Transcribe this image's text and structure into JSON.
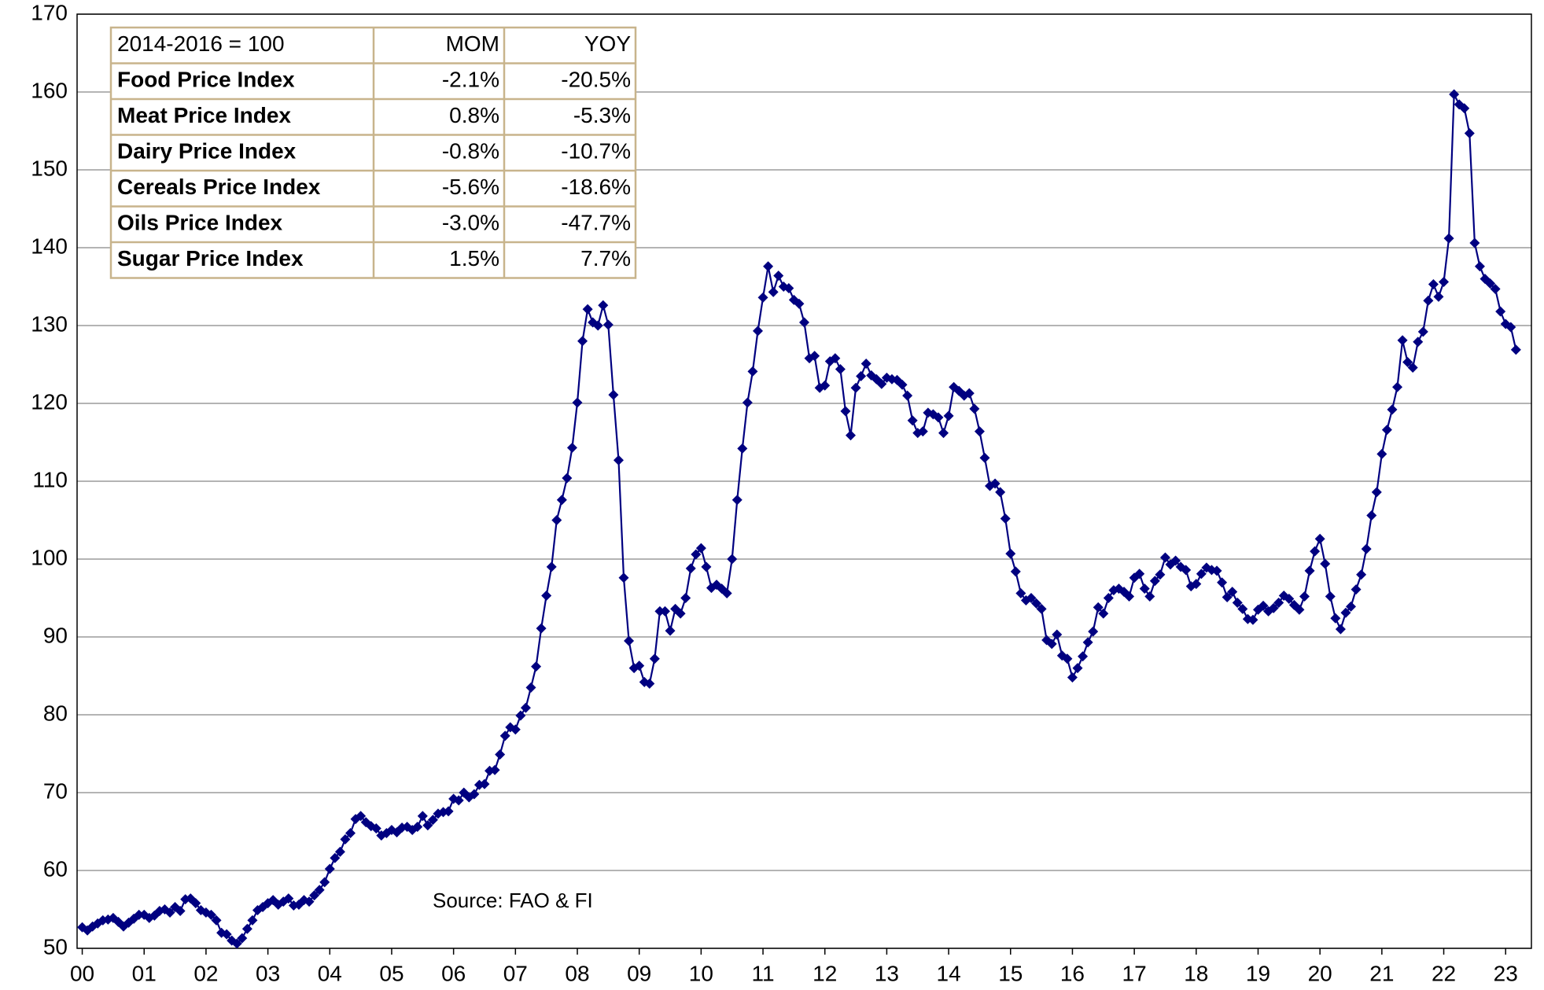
{
  "chart_data": {
    "type": "line",
    "annotation": "Source: FAO & FI",
    "categories": [
      "00",
      null,
      null,
      null,
      null,
      null,
      null,
      null,
      null,
      null,
      null,
      null,
      "01",
      null,
      null,
      null,
      null,
      null,
      null,
      null,
      null,
      null,
      null,
      null,
      "02",
      null,
      null,
      null,
      null,
      null,
      null,
      null,
      null,
      null,
      null,
      null,
      "03",
      null,
      null,
      null,
      null,
      null,
      null,
      null,
      null,
      null,
      null,
      null,
      "04",
      null,
      null,
      null,
      null,
      null,
      null,
      null,
      null,
      null,
      null,
      null,
      "05",
      null,
      null,
      null,
      null,
      null,
      null,
      null,
      null,
      null,
      null,
      null,
      "06",
      null,
      null,
      null,
      null,
      null,
      null,
      null,
      null,
      null,
      null,
      null,
      "07",
      null,
      null,
      null,
      null,
      null,
      null,
      null,
      null,
      null,
      null,
      null,
      "08",
      null,
      null,
      null,
      null,
      null,
      null,
      null,
      null,
      null,
      null,
      null,
      "09",
      null,
      null,
      null,
      null,
      null,
      null,
      null,
      null,
      null,
      null,
      null,
      "10",
      null,
      null,
      null,
      null,
      null,
      null,
      null,
      null,
      null,
      null,
      null,
      "11",
      null,
      null,
      null,
      null,
      null,
      null,
      null,
      null,
      null,
      null,
      null,
      "12",
      null,
      null,
      null,
      null,
      null,
      null,
      null,
      null,
      null,
      null,
      null,
      "13",
      null,
      null,
      null,
      null,
      null,
      null,
      null,
      null,
      null,
      null,
      null,
      "14",
      null,
      null,
      null,
      null,
      null,
      null,
      null,
      null,
      null,
      null,
      null,
      "15",
      null,
      null,
      null,
      null,
      null,
      null,
      null,
      null,
      null,
      null,
      null,
      "16",
      null,
      null,
      null,
      null,
      null,
      null,
      null,
      null,
      null,
      null,
      null,
      "17",
      null,
      null,
      null,
      null,
      null,
      null,
      null,
      null,
      null,
      null,
      null,
      "18",
      null,
      null,
      null,
      null,
      null,
      null,
      null,
      null,
      null,
      null,
      null,
      "19",
      null,
      null,
      null,
      null,
      null,
      null,
      null,
      null,
      null,
      null,
      null,
      "20",
      null,
      null,
      null,
      null,
      null,
      null,
      null,
      null,
      null,
      null,
      null,
      "21",
      null,
      null,
      null,
      null,
      null,
      null,
      null,
      null,
      null,
      null,
      null,
      "22",
      null,
      null,
      null,
      null,
      null,
      null,
      null,
      null,
      null,
      null,
      null,
      "23",
      null,
      null
    ],
    "series": [
      {
        "color": "#000080",
        "values": [
          52.7,
          52.3,
          52.8,
          53.2,
          53.6,
          53.7,
          53.9,
          53.4,
          52.8,
          53.3,
          53.8,
          54.3,
          54.3,
          53.9,
          54.2,
          54.8,
          55.0,
          54.6,
          55.3,
          54.8,
          56.3,
          56.4,
          55.8,
          54.9,
          54.6,
          54.3,
          53.6,
          52.0,
          51.8,
          51.0,
          50.6,
          51.3,
          52.5,
          53.6,
          54.9,
          55.3,
          55.8,
          56.2,
          55.6,
          56.0,
          56.4,
          55.5,
          55.6,
          56.2,
          56.0,
          56.8,
          57.5,
          58.5,
          60.2,
          61.6,
          62.4,
          64.0,
          64.8,
          66.6,
          67.0,
          66.2,
          65.7,
          65.4,
          64.5,
          64.8,
          65.2,
          64.9,
          65.5,
          65.6,
          65.2,
          65.6,
          67.0,
          65.8,
          66.5,
          67.3,
          67.5,
          67.6,
          69.2,
          69.0,
          70.0,
          69.4,
          69.8,
          71.0,
          71.1,
          72.8,
          72.9,
          74.9,
          77.3,
          78.4,
          78.1,
          79.9,
          80.9,
          83.5,
          86.2,
          91.1,
          95.3,
          99.0,
          105.0,
          107.6,
          110.4,
          114.3,
          120.1,
          128.0,
          132.1,
          130.4,
          130.0,
          132.6,
          130.1,
          121.1,
          112.7,
          97.6,
          89.5,
          86.0,
          86.3,
          84.2,
          84.0,
          87.2,
          93.3,
          93.3,
          90.8,
          93.6,
          93.0,
          95.0,
          98.8,
          100.6,
          101.4,
          99.0,
          96.3,
          96.7,
          96.2,
          95.6,
          100.0,
          107.6,
          114.2,
          120.1,
          124.1,
          129.3,
          133.6,
          137.6,
          134.3,
          136.4,
          135.0,
          134.8,
          133.3,
          132.8,
          130.4,
          125.8,
          126.1,
          122.0,
          122.3,
          125.4,
          125.8,
          124.4,
          119.0,
          115.9,
          122.0,
          123.5,
          125.1,
          123.6,
          123.1,
          122.5,
          123.3,
          123.1,
          123.0,
          122.4,
          121.0,
          117.8,
          116.2,
          116.4,
          118.8,
          118.6,
          118.2,
          116.2,
          118.4,
          122.1,
          121.6,
          121.0,
          121.3,
          119.3,
          116.4,
          113.0,
          109.4,
          109.7,
          108.6,
          105.2,
          100.7,
          98.4,
          95.6,
          94.7,
          95.0,
          94.3,
          93.6,
          89.6,
          89.1,
          90.3,
          87.6,
          87.2,
          84.8,
          86.0,
          87.5,
          89.3,
          90.7,
          93.8,
          93.0,
          95.0,
          96.0,
          96.2,
          95.8,
          95.2,
          97.6,
          98.1,
          96.2,
          95.2,
          97.2,
          98.0,
          100.2,
          99.3,
          99.8,
          99.0,
          98.6,
          96.5,
          96.8,
          98.1,
          98.9,
          98.6,
          98.5,
          97.0,
          95.1,
          95.8,
          94.4,
          93.6,
          92.3,
          92.2,
          93.5,
          94.0,
          93.3,
          93.7,
          94.4,
          95.3,
          94.9,
          94.1,
          93.5,
          95.2,
          98.5,
          101.0,
          102.6,
          99.4,
          95.2,
          92.4,
          91.0,
          93.1,
          93.9,
          96.1,
          98.0,
          101.3,
          105.6,
          108.6,
          113.5,
          116.6,
          119.2,
          122.1,
          128.1,
          125.3,
          124.6,
          127.9,
          129.2,
          133.2,
          135.3,
          133.7,
          135.6,
          141.2,
          159.7,
          158.4,
          157.9,
          154.7,
          140.6,
          137.6,
          136.0,
          135.4,
          134.7,
          131.8,
          130.2,
          129.8,
          126.9
        ]
      }
    ],
    "ylim": [
      50,
      170
    ],
    "yticks": [
      50,
      60,
      70,
      80,
      90,
      100,
      110,
      120,
      130,
      140,
      150,
      160,
      170
    ],
    "grid": true,
    "table": {
      "header": [
        "2014-2016 = 100",
        "MOM",
        "YOY"
      ],
      "rows": [
        [
          "Food Price Index",
          "-2.1%",
          "-20.5%"
        ],
        [
          "Meat Price Index",
          "0.8%",
          "-5.3%"
        ],
        [
          "Dairy Price Index",
          "-0.8%",
          "-10.7%"
        ],
        [
          "Cereals Price Index",
          "-5.6%",
          "-18.6%"
        ],
        [
          "Oils Price Index",
          "-3.0%",
          "-47.7%"
        ],
        [
          "Sugar Price Index",
          "1.5%",
          "7.7%"
        ]
      ],
      "colors": [
        "#c0504d",
        "#77933c",
        "#00b0f0",
        "#f79646",
        "#1f497d",
        "#7030a0"
      ]
    }
  }
}
